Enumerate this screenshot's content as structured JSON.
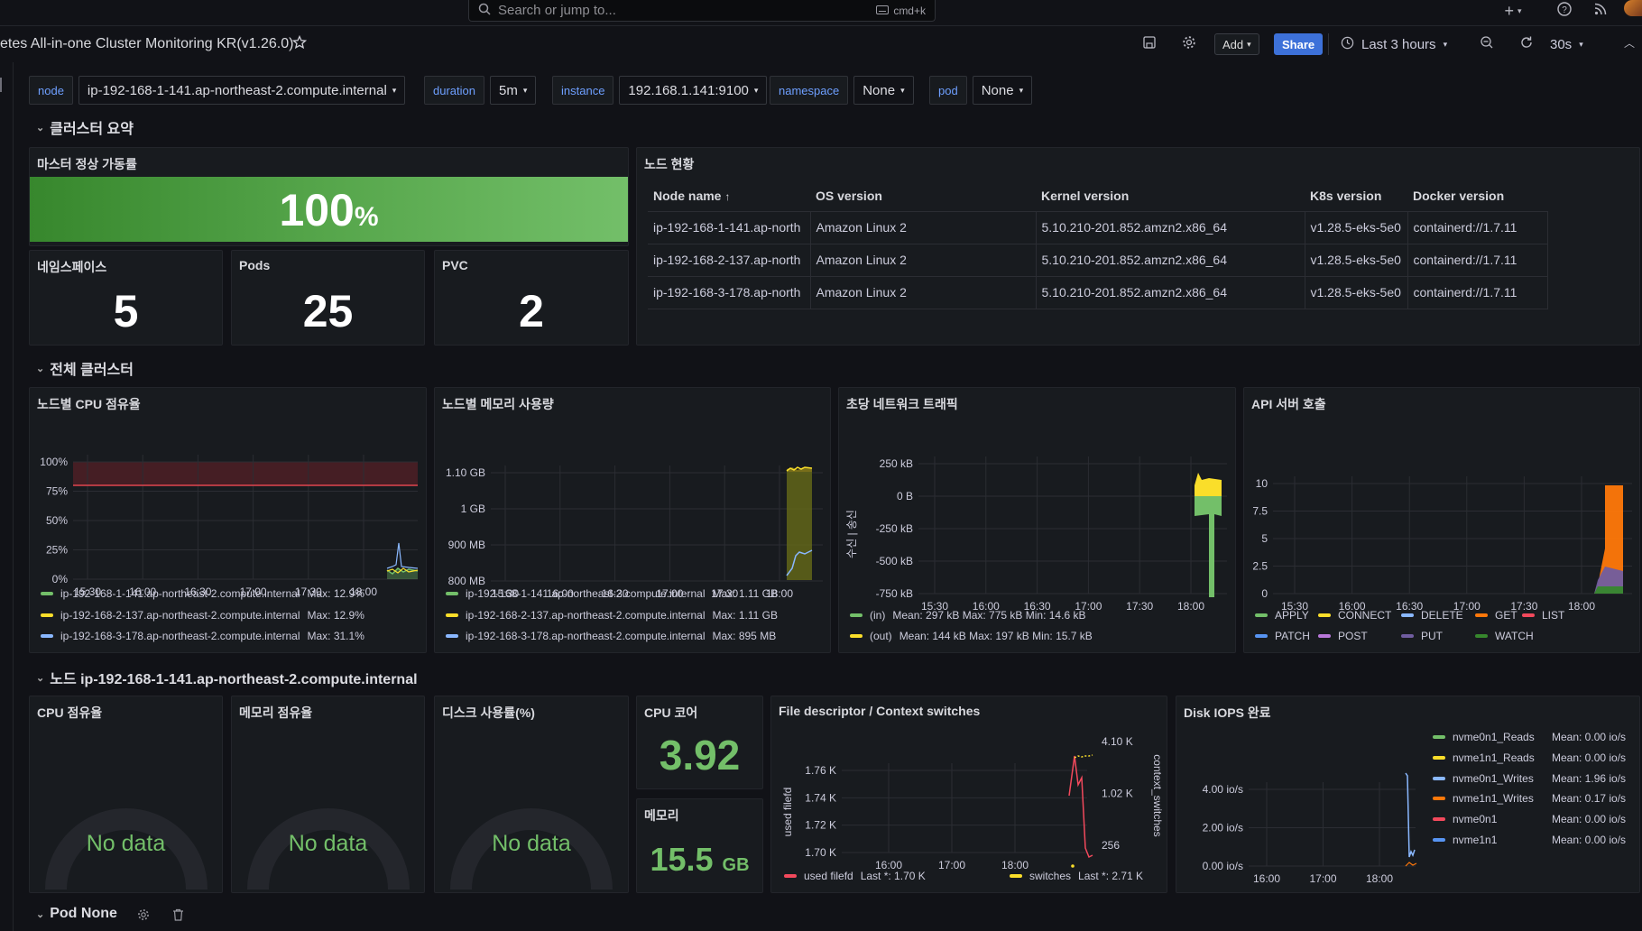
{
  "topbar": {
    "search_placeholder": "Search or jump to...",
    "shortcut": "cmd+k"
  },
  "toolbar": {
    "dashboard_title": "etes All-in-one Cluster Monitoring KR(v1.26.0)",
    "add_label": "Add",
    "share_label": "Share",
    "time_range": "Last 3 hours",
    "refresh_interval": "30s"
  },
  "variables": [
    {
      "label": "node",
      "value": "ip-192-168-1-141.ap-northeast-2.compute.internal"
    },
    {
      "label": "duration",
      "value": "5m"
    },
    {
      "label": "instance",
      "value": "192.168.1.141:9100"
    },
    {
      "label": "namespace",
      "value": "None"
    },
    {
      "label": "pod",
      "value": "None"
    }
  ],
  "rows": {
    "summary": "클러스터 요약",
    "cluster": "전체 클러스터",
    "node": "노드 ip-192-168-1-141.ap-northeast-2.compute.internal",
    "pod": "Pod None"
  },
  "summary": {
    "master_uptime": {
      "title": "마스터 정상 가동률",
      "value": "100",
      "unit": "%"
    },
    "namespaces": {
      "title": "네임스페이스",
      "value": "5"
    },
    "pods": {
      "title": "Pods",
      "value": "25"
    },
    "pvc": {
      "title": "PVC",
      "value": "2"
    }
  },
  "node_status": {
    "title": "노드 현황",
    "columns": [
      "Node name",
      "OS version",
      "Kernel version",
      "K8s version",
      "Docker version"
    ],
    "rows": [
      [
        "ip-192-168-1-141.ap-north",
        "Amazon Linux 2",
        "5.10.210-201.852.amzn2.x86_64",
        "v1.28.5-eks-5e0",
        "containerd://1.7.11"
      ],
      [
        "ip-192-168-2-137.ap-north",
        "Amazon Linux 2",
        "5.10.210-201.852.amzn2.x86_64",
        "v1.28.5-eks-5e0",
        "containerd://1.7.11"
      ],
      [
        "ip-192-168-3-178.ap-north",
        "Amazon Linux 2",
        "5.10.210-201.852.amzn2.x86_64",
        "v1.28.5-eks-5e0",
        "containerd://1.7.11"
      ]
    ]
  },
  "chart_data": [
    {
      "id": "cpu",
      "type": "line",
      "title": "노드별 CPU 점유율",
      "x_ticks": [
        "15:30",
        "16:00",
        "16:30",
        "17:00",
        "17:30",
        "18:00"
      ],
      "y_ticks": [
        "100%",
        "75%",
        "50%",
        "25%",
        "0%"
      ],
      "ylim": [
        0,
        100
      ],
      "threshold": 80,
      "series": [
        {
          "name": "ip-192-168-1-141.ap-northeast-2.compute.internal",
          "stat": "Max: 12.9%",
          "color": "#73bf69"
        },
        {
          "name": "ip-192-168-2-137.ap-northeast-2.compute.internal",
          "stat": "Max: 12.9%",
          "color": "#fade2a"
        },
        {
          "name": "ip-192-168-3-178.ap-northeast-2.compute.internal",
          "stat": "Max: 31.1%",
          "color": "#8ab8ff"
        }
      ]
    },
    {
      "id": "mem",
      "type": "area",
      "title": "노드별 메모리 사용량",
      "x_ticks": [
        "15:30",
        "16:00",
        "16:30",
        "17:00",
        "17:30",
        "18:00"
      ],
      "y_ticks": [
        "1.10 GB",
        "1 GB",
        "900 MB",
        "800 MB"
      ],
      "series": [
        {
          "name": "ip-192-168-1-141.ap-northeast-2.compute.internal",
          "stat": "Max: 1.11 GB",
          "color": "#73bf69"
        },
        {
          "name": "ip-192-168-2-137.ap-northeast-2.compute.internal",
          "stat": "Max: 1.11 GB",
          "color": "#fade2a"
        },
        {
          "name": "ip-192-168-3-178.ap-northeast-2.compute.internal",
          "stat": "Max: 895 MB",
          "color": "#8ab8ff"
        }
      ]
    },
    {
      "id": "net",
      "type": "area",
      "title": "초당 네트워크 트래픽",
      "ylabel": "수신 | 송신",
      "x_ticks": [
        "15:30",
        "16:00",
        "16:30",
        "17:00",
        "17:30",
        "18:00"
      ],
      "y_ticks": [
        "250 kB",
        "0 B",
        "-250 kB",
        "-500 kB",
        "-750 kB"
      ],
      "series": [
        {
          "name": "(in)",
          "stat": "Mean: 297 kB   Max: 775 kB   Min: 14.6 kB",
          "color": "#73bf69"
        },
        {
          "name": "(out)",
          "stat": "Mean: 144 kB   Max: 197 kB   Min: 15.7 kB",
          "color": "#fade2a"
        }
      ]
    },
    {
      "id": "api",
      "type": "area",
      "title": "API 서버 호출",
      "x_ticks": [
        "15:30",
        "16:00",
        "16:30",
        "17:00",
        "17:30",
        "18:00"
      ],
      "y_ticks": [
        "10",
        "7.5",
        "5",
        "2.5",
        "0"
      ],
      "series": [
        {
          "name": "APPLY",
          "color": "#73bf69"
        },
        {
          "name": "CONNECT",
          "color": "#fade2a"
        },
        {
          "name": "DELETE",
          "color": "#8ab8ff"
        },
        {
          "name": "GET",
          "color": "#ff780a"
        },
        {
          "name": "LIST",
          "color": "#f2495c"
        },
        {
          "name": "PATCH",
          "color": "#5794f2"
        },
        {
          "name": "POST",
          "color": "#b877d9"
        },
        {
          "name": "PUT",
          "color": "#705da0"
        },
        {
          "name": "WATCH",
          "color": "#37872d"
        }
      ]
    },
    {
      "id": "fd",
      "type": "line",
      "title": "File descriptor / Context switches",
      "ylabel_left": "used filefd",
      "ylabel_right": "context_switches",
      "x_ticks": [
        "16:00",
        "17:00",
        "18:00"
      ],
      "y_ticks_left": [
        "1.76 K",
        "1.74 K",
        "1.72 K",
        "1.70 K"
      ],
      "y_ticks_right": [
        "4.10 K",
        "1.02 K",
        "256"
      ],
      "series": [
        {
          "name": "used filefd",
          "stat": "Last *: 1.70 K",
          "color": "#f2495c"
        },
        {
          "name": "switches",
          "stat": "Last *: 2.71 K",
          "color": "#fade2a"
        }
      ]
    },
    {
      "id": "iops",
      "type": "line",
      "title": "Disk IOPS 완료",
      "x_ticks": [
        "16:00",
        "17:00",
        "18:00"
      ],
      "y_ticks": [
        "4.00 io/s",
        "2.00 io/s",
        "0.00 io/s"
      ],
      "series": [
        {
          "name": "nvme0n1_Reads",
          "stat": "Mean: 0.00 io/s",
          "color": "#73bf69"
        },
        {
          "name": "nvme1n1_Reads",
          "stat": "Mean: 0.00 io/s",
          "color": "#fade2a"
        },
        {
          "name": "nvme0n1_Writes",
          "stat": "Mean: 1.96 io/s",
          "color": "#8ab8ff"
        },
        {
          "name": "nvme1n1_Writes",
          "stat": "Mean: 0.17 io/s",
          "color": "#ff780a"
        },
        {
          "name": "nvme0n1",
          "stat": "Mean: 0.00 io/s",
          "color": "#f2495c"
        },
        {
          "name": "nvme1n1",
          "stat": "Mean: 0.00 io/s",
          "color": "#5794f2"
        }
      ]
    }
  ],
  "node_panels": {
    "cpu": {
      "title": "CPU 점유율",
      "value": "No data"
    },
    "mem": {
      "title": "메모리 점유율",
      "value": "No data"
    },
    "disk": {
      "title": "디스크 사용률(%)",
      "value": "No data"
    },
    "cores": {
      "title": "CPU 코어",
      "value": "3.92"
    },
    "memory": {
      "title": "메모리",
      "value": "15.5",
      "unit": "GB"
    }
  },
  "colors": {
    "background": "#111217",
    "panel": "#181b1f",
    "green": "#73bf69",
    "accent": "#3d71d9"
  }
}
